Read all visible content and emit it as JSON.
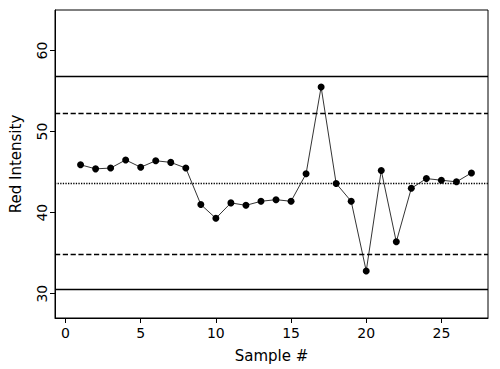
{
  "chart_data": {
    "type": "line",
    "marker": "circle",
    "color": "#000000",
    "x_label": "Sample #",
    "y_label": "Red Intensity",
    "x": [
      1,
      2,
      3,
      4,
      5,
      6,
      7,
      8,
      9,
      10,
      11,
      12,
      13,
      14,
      15,
      16,
      17,
      18,
      19,
      20,
      21,
      22,
      23,
      24,
      25,
      26,
      27
    ],
    "values": [
      45.9,
      45.4,
      45.5,
      46.5,
      45.6,
      46.4,
      46.2,
      45.5,
      41.0,
      39.3,
      41.2,
      40.9,
      41.4,
      41.6,
      41.4,
      44.8,
      55.5,
      43.6,
      41.4,
      32.8,
      45.2,
      36.4,
      43.0,
      44.2,
      44.0,
      43.8,
      44.9
    ],
    "xlim": [
      -0.7,
      28.1
    ],
    "xticks": [
      0,
      5,
      10,
      15,
      20,
      25
    ],
    "ylim": [
      27,
      65
    ],
    "yticks": [
      30,
      40,
      50,
      60
    ],
    "grid": false,
    "reference_lines": [
      {
        "value": 56.8,
        "line_style": "solid"
      },
      {
        "value": 52.2,
        "line_style": "dashed"
      },
      {
        "value": 43.6,
        "line_style": "dotted"
      },
      {
        "value": 34.9,
        "line_style": "dashed"
      },
      {
        "value": 30.6,
        "line_style": "solid"
      }
    ]
  }
}
